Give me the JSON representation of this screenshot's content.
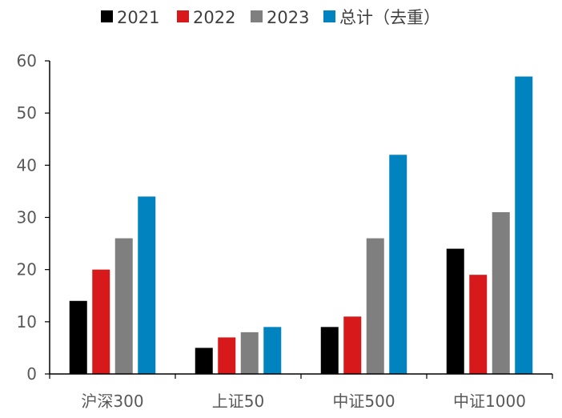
{
  "chart_data": {
    "type": "bar",
    "categories": [
      "沪深300",
      "上证50",
      "中证500",
      "中证1000"
    ],
    "series": [
      {
        "name": "2021",
        "color": "#000000",
        "values": [
          14,
          5,
          9,
          24
        ]
      },
      {
        "name": "2022",
        "color": "#d7191c",
        "values": [
          20,
          7,
          11,
          19
        ]
      },
      {
        "name": "2023",
        "color": "#7f7f7f",
        "values": [
          26,
          8,
          26,
          31
        ]
      },
      {
        "name": "总计（去重）",
        "color": "#0083bf",
        "values": [
          34,
          9,
          42,
          57
        ]
      }
    ],
    "ylim": [
      0,
      60
    ],
    "yticks": [
      0,
      10,
      20,
      30,
      40,
      50,
      60
    ],
    "legend_position": "top",
    "grid": false
  }
}
